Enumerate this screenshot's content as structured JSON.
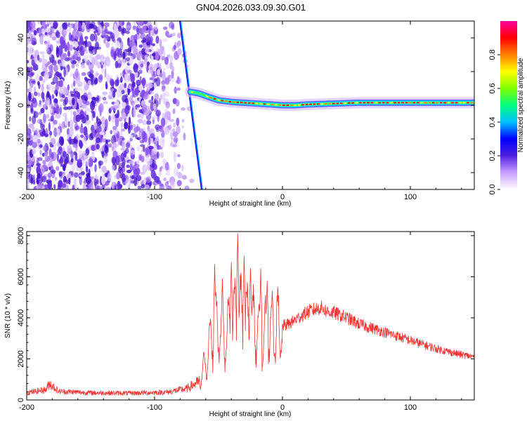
{
  "title": "GN04.2026.033.09.30.G01",
  "chart_data": [
    {
      "type": "heatmap",
      "name": "spectrogram",
      "xlabel": "Height of straight line (km)",
      "ylabel": "Frequency (Hz)",
      "xlim": [
        -200,
        150
      ],
      "ylim": [
        -50,
        50
      ],
      "xticks": [
        -200,
        -100,
        0,
        100
      ],
      "yticks": [
        -40,
        -20,
        0,
        20,
        40
      ],
      "grid": false,
      "colorbar": {
        "label": "Normalized spectral amplitude",
        "range": [
          0,
          1
        ],
        "ticks": [
          "0.0",
          "0.2",
          "0.4",
          "0.6",
          "0.8"
        ],
        "colormap": [
          "#ffffff",
          "#c8a0ff",
          "#5020e0",
          "#0000ff",
          "#00c0ff",
          "#00ff80",
          "#80ff00",
          "#ffff00",
          "#ff8000",
          "#ff0000",
          "#ff00a0"
        ]
      },
      "features": {
        "noise_region_x": [
          -200,
          -70
        ],
        "aliased_signal_line": [
          [
            -80,
            50
          ],
          [
            -63,
            -50
          ]
        ],
        "signal_track": [
          [
            -72,
            8
          ],
          [
            -65,
            7
          ],
          [
            -58,
            5
          ],
          [
            -50,
            3
          ],
          [
            -40,
            2
          ],
          [
            -30,
            1.5
          ],
          [
            -20,
            1
          ],
          [
            -10,
            0.5
          ],
          [
            0,
            0
          ],
          [
            10,
            0
          ],
          [
            20,
            0.5
          ],
          [
            40,
            1
          ],
          [
            60,
            1.5
          ],
          [
            80,
            1.5
          ],
          [
            100,
            1.5
          ],
          [
            120,
            1.5
          ],
          [
            150,
            1.5
          ]
        ]
      }
    },
    {
      "type": "line",
      "name": "snr",
      "xlabel": "Height of straight line (km)",
      "ylabel": "SNR (10 * v/v)",
      "xlim": [
        -200,
        150
      ],
      "ylim": [
        0,
        8200
      ],
      "xticks": [
        -200,
        -100,
        0,
        100
      ],
      "yticks": [
        0,
        2000,
        4000,
        6000,
        8000
      ],
      "color": "#ee3333",
      "grid": false,
      "envelope": [
        [
          -200,
          350
        ],
        [
          -185,
          500
        ],
        [
          -182,
          800
        ],
        [
          -175,
          420
        ],
        [
          -150,
          350
        ],
        [
          -120,
          330
        ],
        [
          -90,
          380
        ],
        [
          -75,
          550
        ],
        [
          -65,
          900
        ],
        [
          -60,
          1800
        ],
        [
          -55,
          3200
        ],
        [
          -50,
          3600
        ],
        [
          -45,
          3000
        ],
        [
          -40,
          3600
        ],
        [
          -35,
          4200
        ],
        [
          -30,
          3800
        ],
        [
          -25,
          3700
        ],
        [
          -20,
          3500
        ],
        [
          -15,
          3100
        ],
        [
          -10,
          3400
        ],
        [
          -5,
          3500
        ],
        [
          0,
          3600
        ],
        [
          5,
          3700
        ],
        [
          10,
          3900
        ],
        [
          15,
          4100
        ],
        [
          20,
          4300
        ],
        [
          25,
          4400
        ],
        [
          30,
          4500
        ],
        [
          35,
          4300
        ],
        [
          40,
          4250
        ],
        [
          50,
          4000
        ],
        [
          60,
          3700
        ],
        [
          70,
          3500
        ],
        [
          80,
          3300
        ],
        [
          90,
          3100
        ],
        [
          100,
          2900
        ],
        [
          110,
          2700
        ],
        [
          120,
          2500
        ],
        [
          130,
          2350
        ],
        [
          140,
          2200
        ],
        [
          150,
          2100
        ]
      ],
      "peaks": [
        [
          -53,
          6600
        ],
        [
          -47,
          5900
        ],
        [
          -40,
          6700
        ],
        [
          -35,
          8100
        ],
        [
          -30,
          7000
        ],
        [
          -25,
          6400
        ],
        [
          -17,
          6400
        ],
        [
          -12,
          5800
        ],
        [
          -8,
          5300
        ]
      ]
    }
  ]
}
